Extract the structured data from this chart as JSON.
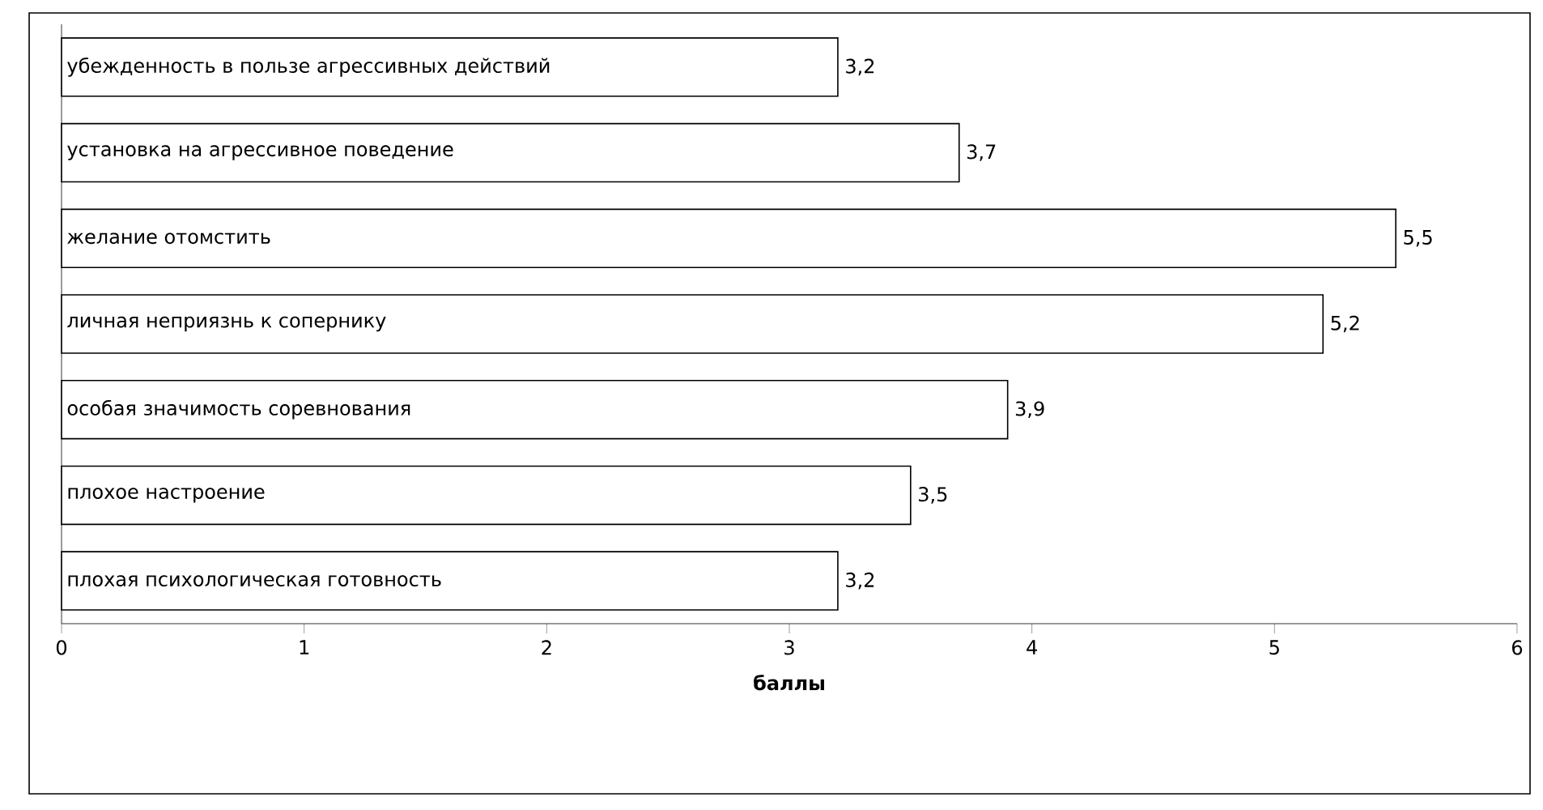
{
  "chart_data": {
    "type": "bar",
    "orientation": "horizontal",
    "xlabel": "баллы",
    "categories": [
      "убежденность в пользе агрессивных действий",
      "установка на агрессивное поведение",
      "желание отомстить",
      "личная неприязнь к сопернику",
      "особая значимость соревнования",
      "плохое настроение",
      "плохая психологическая готовность"
    ],
    "values": [
      3.2,
      3.7,
      5.5,
      5.2,
      3.9,
      3.5,
      3.2
    ],
    "value_labels": [
      "3,2",
      "3,7",
      "5,5",
      "5,2",
      "3,9",
      "3,5",
      "3,2"
    ],
    "color": "#ffffff",
    "xlim": [
      0,
      6
    ],
    "xticks": [
      0,
      1,
      2,
      3,
      4,
      5,
      6
    ]
  }
}
